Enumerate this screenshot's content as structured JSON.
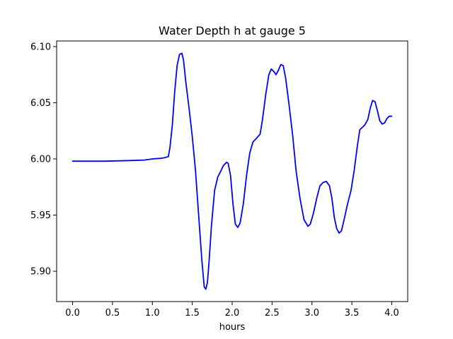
{
  "chart_data": {
    "type": "line",
    "title": "Water Depth h at gauge 5",
    "xlabel": "hours",
    "ylabel": "",
    "xlim": [
      -0.2,
      4.2
    ],
    "ylim": [
      5.873,
      6.105
    ],
    "xticks": [
      0.0,
      0.5,
      1.0,
      1.5,
      2.0,
      2.5,
      3.0,
      3.5,
      4.0
    ],
    "xtick_labels": [
      "0.0",
      "0.5",
      "1.0",
      "1.5",
      "2.0",
      "2.5",
      "3.0",
      "3.5",
      "4.0"
    ],
    "yticks": [
      5.9,
      5.95,
      6.0,
      6.05,
      6.1
    ],
    "ytick_labels": [
      "5.90",
      "5.95",
      "6.00",
      "6.05",
      "6.10"
    ],
    "grid": false,
    "series": [
      {
        "color": "#0000ff",
        "x": [
          0.0,
          0.2,
          0.4,
          0.6,
          0.8,
          0.9,
          1.0,
          1.1,
          1.15,
          1.2,
          1.22,
          1.25,
          1.28,
          1.31,
          1.34,
          1.37,
          1.39,
          1.42,
          1.46,
          1.5,
          1.54,
          1.58,
          1.62,
          1.65,
          1.67,
          1.69,
          1.71,
          1.74,
          1.78,
          1.82,
          1.85,
          1.89,
          1.93,
          1.95,
          1.98,
          2.01,
          2.04,
          2.07,
          2.1,
          2.14,
          2.18,
          2.22,
          2.26,
          2.3,
          2.35,
          2.38,
          2.42,
          2.46,
          2.49,
          2.52,
          2.55,
          2.58,
          2.61,
          2.64,
          2.67,
          2.71,
          2.76,
          2.8,
          2.85,
          2.9,
          2.95,
          2.98,
          3.02,
          3.06,
          3.1,
          3.14,
          3.18,
          3.22,
          3.25,
          3.28,
          3.31,
          3.34,
          3.37,
          3.4,
          3.44,
          3.49,
          3.53,
          3.57,
          3.6,
          3.63,
          3.66,
          3.7,
          3.73,
          3.76,
          3.79,
          3.82,
          3.85,
          3.88,
          3.91,
          3.94,
          3.97,
          4.0
        ],
        "y": [
          5.998,
          5.998,
          5.998,
          5.9983,
          5.9987,
          5.999,
          6.0,
          6.0005,
          6.001,
          6.002,
          6.01,
          6.03,
          6.06,
          6.083,
          6.093,
          6.094,
          6.088,
          6.068,
          6.045,
          6.02,
          5.99,
          5.95,
          5.91,
          5.886,
          5.884,
          5.89,
          5.908,
          5.94,
          5.972,
          5.984,
          5.988,
          5.994,
          5.997,
          5.996,
          5.985,
          5.96,
          5.942,
          5.939,
          5.943,
          5.96,
          5.985,
          6.005,
          6.015,
          6.018,
          6.022,
          6.035,
          6.057,
          6.075,
          6.08,
          6.078,
          6.075,
          6.079,
          6.084,
          6.083,
          6.072,
          6.05,
          6.02,
          5.99,
          5.965,
          5.946,
          5.94,
          5.942,
          5.952,
          5.965,
          5.976,
          5.979,
          5.98,
          5.976,
          5.965,
          5.948,
          5.938,
          5.934,
          5.936,
          5.945,
          5.958,
          5.972,
          5.99,
          6.012,
          6.026,
          6.028,
          6.03,
          6.035,
          6.045,
          6.052,
          6.051,
          6.043,
          6.034,
          6.031,
          6.032,
          6.036,
          6.038,
          6.038
        ]
      }
    ]
  }
}
